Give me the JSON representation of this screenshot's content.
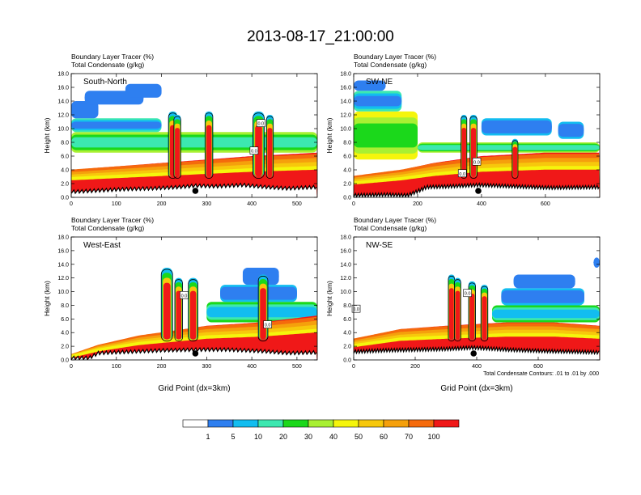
{
  "figure": {
    "title": "2013-08-17_21:00:00",
    "footnote": "Total Condensate Contours: .01 to .01 by .000"
  },
  "colors": {
    "levels": [
      "#ffffff",
      "#2e7ff0",
      "#12bdf0",
      "#3ce8b0",
      "#1bd81b",
      "#a8f032",
      "#f5f50c",
      "#f7c80c",
      "#f5a00c",
      "#f56a0c",
      "#f01818"
    ],
    "contour": "#000000",
    "marker": "#000000"
  },
  "chart_data": [
    {
      "type": "heatmap",
      "panel_label": "South-North",
      "subtitle_line1": "Boundary Layer Tracer   (%)",
      "subtitle_line2": "Total Condensate   (g/kg)",
      "ylabel": "Height (km)",
      "xlabel": "",
      "xlim": [
        0,
        545
      ],
      "ylim": [
        0,
        18
      ],
      "xticks": [
        "0",
        "100",
        "200",
        "300",
        "400",
        "500"
      ],
      "yticks": [
        "0.0",
        "2.0",
        "4.0",
        "6.0",
        "8.0",
        "10.0",
        "12.0",
        "14.0",
        "16.0",
        "18.0"
      ],
      "marker_x": 275,
      "contour_labels": [
        {
          "x": 420,
          "y": 10.8,
          "text": "0.0"
        },
        {
          "x": 405,
          "y": 6.8,
          "text": "0.0"
        }
      ],
      "terrain_km": [
        [
          0,
          0.8
        ],
        [
          60,
          1.0
        ],
        [
          120,
          1.2
        ],
        [
          180,
          1.3
        ],
        [
          240,
          1.5
        ],
        [
          275,
          1.7
        ],
        [
          320,
          1.6
        ],
        [
          380,
          1.8
        ],
        [
          430,
          1.5
        ],
        [
          480,
          1.3
        ],
        [
          545,
          1.5
        ]
      ],
      "bl_top_km": [
        [
          0,
          4.0
        ],
        [
          100,
          4.5
        ],
        [
          200,
          5.0
        ],
        [
          300,
          5.5
        ],
        [
          400,
          6.0
        ],
        [
          545,
          6.5
        ]
      ],
      "cloud_layers": [
        {
          "x0": 0,
          "x1": 545,
          "base": 6.5,
          "top": 9.5,
          "level": 5
        },
        {
          "x0": 0,
          "x1": 200,
          "base": 9.5,
          "top": 11.5,
          "level": 3
        },
        {
          "x0": 0,
          "x1": 60,
          "base": 11.5,
          "top": 14.0,
          "level": 1
        },
        {
          "x0": 30,
          "x1": 160,
          "base": 13.5,
          "top": 15.5,
          "level": 1
        },
        {
          "x0": 120,
          "x1": 200,
          "base": 14.5,
          "top": 16.5,
          "level": 1
        }
      ],
      "columns": [
        {
          "x": 225,
          "w": 12,
          "top": 12.5
        },
        {
          "x": 235,
          "w": 8,
          "top": 12.0
        },
        {
          "x": 305,
          "w": 10,
          "top": 12.5
        },
        {
          "x": 415,
          "w": 18,
          "top": 12.5
        },
        {
          "x": 440,
          "w": 8,
          "top": 12.0
        }
      ]
    },
    {
      "type": "heatmap",
      "panel_label": "SW-NE",
      "subtitle_line1": "Boundary Layer Tracer   (%)",
      "subtitle_line2": "Total Condensate   (g/kg)",
      "ylabel": "Height (km)",
      "xlabel": "",
      "xlim": [
        0,
        770
      ],
      "ylim": [
        0,
        18
      ],
      "xticks": [
        "0",
        "200",
        "400",
        "600"
      ],
      "yticks": [
        "0.0",
        "2.0",
        "4.0",
        "6.0",
        "8.0",
        "10.0",
        "12.0",
        "14.0",
        "16.0",
        "18.0"
      ],
      "marker_x": 390,
      "contour_labels": [
        {
          "x": 340,
          "y": 3.5,
          "text": "0.0"
        },
        {
          "x": 385,
          "y": 5.2,
          "text": "0.0"
        }
      ],
      "terrain_km": [
        [
          0,
          0.3
        ],
        [
          100,
          0.4
        ],
        [
          170,
          0.3
        ],
        [
          230,
          1.5
        ],
        [
          300,
          1.6
        ],
        [
          390,
          1.8
        ],
        [
          500,
          1.6
        ],
        [
          620,
          1.4
        ],
        [
          770,
          1.5
        ]
      ],
      "bl_top_km": [
        [
          0,
          3.0
        ],
        [
          150,
          4.0
        ],
        [
          250,
          5.0
        ],
        [
          400,
          6.0
        ],
        [
          600,
          6.5
        ],
        [
          770,
          6.5
        ]
      ],
      "cloud_layers": [
        {
          "x0": 0,
          "x1": 200,
          "base": 5.5,
          "top": 12.5,
          "level": 6
        },
        {
          "x0": 0,
          "x1": 150,
          "base": 12.5,
          "top": 15.5,
          "level": 3
        },
        {
          "x0": 0,
          "x1": 100,
          "base": 15.5,
          "top": 17.0,
          "level": 1
        },
        {
          "x0": 200,
          "x1": 770,
          "base": 6.5,
          "top": 8.0,
          "level": 5
        },
        {
          "x0": 400,
          "x1": 620,
          "base": 9.0,
          "top": 11.5,
          "level": 2
        },
        {
          "x0": 640,
          "x1": 720,
          "base": 8.5,
          "top": 11.0,
          "level": 2
        }
      ],
      "columns": [
        {
          "x": 345,
          "w": 8,
          "top": 12.0
        },
        {
          "x": 375,
          "w": 12,
          "top": 12.0
        },
        {
          "x": 505,
          "w": 8,
          "top": 8.5
        }
      ]
    },
    {
      "type": "heatmap",
      "panel_label": "West-East",
      "subtitle_line1": "Boundary Layer Tracer   (%)",
      "subtitle_line2": "Total Condensate   (g/kg)",
      "ylabel": "Height (km)",
      "xlabel": "Grid Point (dx=3km)",
      "xlim": [
        0,
        545
      ],
      "ylim": [
        0,
        18
      ],
      "xticks": [
        "0",
        "100",
        "200",
        "300",
        "400",
        "500"
      ],
      "yticks": [
        "0.0",
        "2.0",
        "4.0",
        "6.0",
        "8.0",
        "10.0",
        "12.0",
        "14.0",
        "16.0",
        "18.0"
      ],
      "marker_x": 275,
      "contour_labels": [
        {
          "x": 250,
          "y": 9.5,
          "text": "0.0"
        },
        {
          "x": 435,
          "y": 5.2,
          "text": "0.0"
        }
      ],
      "terrain_km": [
        [
          0,
          0.3
        ],
        [
          40,
          0.3
        ],
        [
          60,
          1.0
        ],
        [
          130,
          1.2
        ],
        [
          200,
          1.4
        ],
        [
          275,
          1.5
        ],
        [
          350,
          1.5
        ],
        [
          420,
          1.3
        ],
        [
          480,
          1.0
        ],
        [
          545,
          1.1
        ]
      ],
      "bl_top_km": [
        [
          0,
          0.5
        ],
        [
          60,
          2.0
        ],
        [
          150,
          3.5
        ],
        [
          300,
          5.0
        ],
        [
          420,
          5.5
        ],
        [
          545,
          6.5
        ]
      ],
      "cloud_layers": [
        {
          "x0": 300,
          "x1": 545,
          "base": 5.5,
          "top": 8.5,
          "level": 4
        },
        {
          "x0": 330,
          "x1": 500,
          "base": 8.5,
          "top": 11.0,
          "level": 2
        },
        {
          "x0": 380,
          "x1": 460,
          "base": 11.0,
          "top": 13.5,
          "level": 1
        }
      ],
      "columns": [
        {
          "x": 212,
          "w": 18,
          "top": 13.5
        },
        {
          "x": 238,
          "w": 10,
          "top": 12.0
        },
        {
          "x": 270,
          "w": 14,
          "top": 12.0
        },
        {
          "x": 425,
          "w": 14,
          "top": 12.5
        }
      ]
    },
    {
      "type": "heatmap",
      "panel_label": "NW-SE",
      "subtitle_line1": "Boundary Layer Tracer   (%)",
      "subtitle_line2": "Total Condensate   (g/kg)",
      "ylabel": "Height (km)",
      "xlabel": "Grid Point (dx=3km)",
      "xlim": [
        0,
        800
      ],
      "ylim": [
        0,
        18
      ],
      "xticks": [
        "0",
        "200",
        "400",
        "600"
      ],
      "yticks": [
        "0.0",
        "2.0",
        "4.0",
        "6.0",
        "8.0",
        "10.0",
        "12.0",
        "14.0",
        "16.0",
        "18.0"
      ],
      "marker_x": 390,
      "contour_labels": [
        {
          "x": 370,
          "y": 9.8,
          "text": "0.0"
        },
        {
          "x": 8,
          "y": 7.5,
          "text": "0.0"
        }
      ],
      "terrain_km": [
        [
          0,
          1.2
        ],
        [
          100,
          1.4
        ],
        [
          200,
          1.5
        ],
        [
          300,
          1.6
        ],
        [
          390,
          1.8
        ],
        [
          500,
          1.5
        ],
        [
          620,
          1.3
        ],
        [
          720,
          1.2
        ],
        [
          800,
          1.1
        ]
      ],
      "bl_top_km": [
        [
          0,
          3.0
        ],
        [
          150,
          4.5
        ],
        [
          300,
          5.0
        ],
        [
          500,
          5.5
        ],
        [
          650,
          5.5
        ],
        [
          800,
          5.0
        ]
      ],
      "cloud_layers": [
        {
          "x0": 450,
          "x1": 800,
          "base": 5.5,
          "top": 8.0,
          "level": 4
        },
        {
          "x0": 480,
          "x1": 750,
          "base": 8.0,
          "top": 10.5,
          "level": 2
        },
        {
          "x0": 520,
          "x1": 720,
          "base": 10.5,
          "top": 12.5,
          "level": 1
        },
        {
          "x0": 780,
          "x1": 800,
          "base": 13.5,
          "top": 15.0,
          "level": 1
        }
      ],
      "columns": [
        {
          "x": 318,
          "w": 10,
          "top": 12.5
        },
        {
          "x": 338,
          "w": 10,
          "top": 12.0
        },
        {
          "x": 385,
          "w": 12,
          "top": 11.5
        },
        {
          "x": 425,
          "w": 12,
          "top": 11.0
        }
      ]
    }
  ],
  "legend": {
    "labels": [
      "1",
      "5",
      "10",
      "20",
      "30",
      "40",
      "50",
      "60",
      "70",
      "100"
    ]
  }
}
